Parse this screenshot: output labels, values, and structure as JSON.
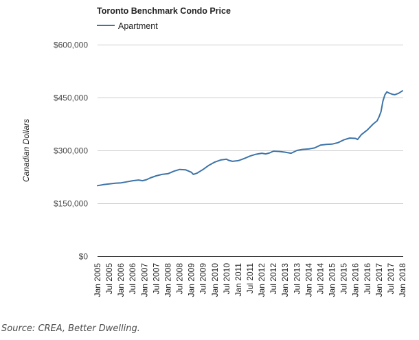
{
  "source_text": "Source: CREA, Better Dwelling.",
  "chart_data": {
    "type": "line",
    "title": "Toronto Benchmark Condo Price",
    "xlabel": "",
    "ylabel": "Canadian Dollars",
    "legend_position": "top-left",
    "grid": true,
    "ylim": [
      0,
      600000
    ],
    "yticks": [
      0,
      150000,
      300000,
      450000,
      600000
    ],
    "ytick_labels": [
      "$0",
      "$150,000",
      "$300,000",
      "$450,000",
      "$600,000"
    ],
    "x_start_month": "Jan 2005",
    "x_end_month": "Jan 2018",
    "xtick_labels": [
      "Jan 2005",
      "Jul 2005",
      "Jan 2006",
      "Jul 2006",
      "Jan 2007",
      "Jul 2007",
      "Jan 2008",
      "Jul 2008",
      "Jan 2009",
      "Jul 2009",
      "Jan 2010",
      "Jul 2010",
      "Jan 2011",
      "Jul 2011",
      "Jan 2012",
      "Jul 2012",
      "Jan 2013",
      "Jul 2013",
      "Jan 2014",
      "Jul 2014",
      "Jan 2015",
      "Jul 2015",
      "Jan 2016",
      "Jul 2016",
      "Jan 2017",
      "Jul 2017",
      "Jan 2018"
    ],
    "series": [
      {
        "name": "Apartment",
        "color": "#3d73a8",
        "points": [
          {
            "m": 0,
            "v": 200000
          },
          {
            "m": 3,
            "v": 203000
          },
          {
            "m": 6,
            "v": 205000
          },
          {
            "m": 9,
            "v": 207000
          },
          {
            "m": 12,
            "v": 208000
          },
          {
            "m": 15,
            "v": 211000
          },
          {
            "m": 18,
            "v": 214000
          },
          {
            "m": 21,
            "v": 216000
          },
          {
            "m": 23,
            "v": 214000
          },
          {
            "m": 25,
            "v": 217000
          },
          {
            "m": 27,
            "v": 222000
          },
          {
            "m": 30,
            "v": 228000
          },
          {
            "m": 33,
            "v": 232000
          },
          {
            "m": 36,
            "v": 234000
          },
          {
            "m": 39,
            "v": 241000
          },
          {
            "m": 42,
            "v": 246000
          },
          {
            "m": 45,
            "v": 245000
          },
          {
            "m": 48,
            "v": 238000
          },
          {
            "m": 49,
            "v": 232000
          },
          {
            "m": 51,
            "v": 236000
          },
          {
            "m": 54,
            "v": 246000
          },
          {
            "m": 57,
            "v": 258000
          },
          {
            "m": 60,
            "v": 267000
          },
          {
            "m": 63,
            "v": 273000
          },
          {
            "m": 66,
            "v": 275000
          },
          {
            "m": 67,
            "v": 272000
          },
          {
            "m": 69,
            "v": 269000
          },
          {
            "m": 72,
            "v": 271000
          },
          {
            "m": 75,
            "v": 277000
          },
          {
            "m": 78,
            "v": 284000
          },
          {
            "m": 81,
            "v": 289000
          },
          {
            "m": 84,
            "v": 292000
          },
          {
            "m": 86,
            "v": 290000
          },
          {
            "m": 88,
            "v": 293000
          },
          {
            "m": 90,
            "v": 298000
          },
          {
            "m": 93,
            "v": 297000
          },
          {
            "m": 96,
            "v": 295000
          },
          {
            "m": 99,
            "v": 292000
          },
          {
            "m": 102,
            "v": 300000
          },
          {
            "m": 105,
            "v": 303000
          },
          {
            "m": 108,
            "v": 304000
          },
          {
            "m": 111,
            "v": 307000
          },
          {
            "m": 114,
            "v": 315000
          },
          {
            "m": 117,
            "v": 317000
          },
          {
            "m": 120,
            "v": 318000
          },
          {
            "m": 123,
            "v": 322000
          },
          {
            "m": 126,
            "v": 330000
          },
          {
            "m": 129,
            "v": 335000
          },
          {
            "m": 132,
            "v": 334000
          },
          {
            "m": 133,
            "v": 331000
          },
          {
            "m": 135,
            "v": 345000
          },
          {
            "m": 138,
            "v": 358000
          },
          {
            "m": 141,
            "v": 375000
          },
          {
            "m": 143,
            "v": 384000
          },
          {
            "m": 144,
            "v": 395000
          },
          {
            "m": 145,
            "v": 410000
          },
          {
            "m": 146,
            "v": 440000
          },
          {
            "m": 147,
            "v": 458000
          },
          {
            "m": 148,
            "v": 466000
          },
          {
            "m": 149,
            "v": 463000
          },
          {
            "m": 151,
            "v": 459000
          },
          {
            "m": 152,
            "v": 458000
          },
          {
            "m": 154,
            "v": 462000
          },
          {
            "m": 156,
            "v": 469000
          }
        ]
      }
    ]
  }
}
